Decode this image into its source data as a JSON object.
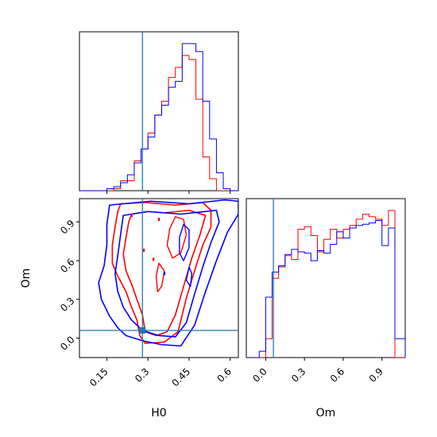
{
  "chart_data": {
    "type": "corner",
    "colors": {
      "red": "#ff0000",
      "blue": "#0000ff",
      "truth": "#1f77b4"
    },
    "truth": {
      "H0": 0.28,
      "Om": 0.06
    },
    "parameters": [
      "H0",
      "Om"
    ],
    "panels": [
      {
        "id": "h0-hist",
        "kind": "histogram",
        "xlim": [
          0.05,
          0.63
        ],
        "xticks": [
          0.15,
          0.3,
          0.45,
          0.6
        ],
        "bin_edges": [
          0.05,
          0.075,
          0.1,
          0.125,
          0.15,
          0.175,
          0.2,
          0.225,
          0.25,
          0.275,
          0.3,
          0.325,
          0.35,
          0.375,
          0.4,
          0.425,
          0.45,
          0.475,
          0.5,
          0.525,
          0.55,
          0.575,
          0.6,
          0.625
        ],
        "series": [
          {
            "color": "red",
            "counts": [
              0,
              0,
              0,
              0,
              0,
              0.01,
              0.05,
              0.05,
              0.15,
              0.21,
              0.29,
              0.38,
              0.45,
              0.57,
              0.62,
              0.68,
              0.66,
              0.46,
              0.17,
              0.06,
              0,
              0,
              0
            ]
          },
          {
            "color": "blue",
            "counts": [
              0,
              0,
              0,
              0,
              0.01,
              0.02,
              0.04,
              0.08,
              0.14,
              0.21,
              0.27,
              0.38,
              0.43,
              0.52,
              0.55,
              0.74,
              0.74,
              0.7,
              0.45,
              0.26,
              0.09,
              0.01,
              0
            ]
          }
        ]
      },
      {
        "id": "om-hist",
        "kind": "histogram",
        "xlim": [
          -0.15,
          1.08
        ],
        "xticks": [
          0.0,
          0.3,
          0.6,
          0.9
        ],
        "xlabel": "Om",
        "bin_edges": [
          -0.15,
          -0.1,
          -0.05,
          0.0,
          0.05,
          0.1,
          0.15,
          0.2,
          0.25,
          0.3,
          0.35,
          0.4,
          0.45,
          0.5,
          0.55,
          0.6,
          0.65,
          0.7,
          0.75,
          0.8,
          0.85,
          0.9,
          0.95,
          1.0,
          1.05,
          1.08
        ],
        "series": [
          {
            "color": "red",
            "counts": [
              0,
              0,
              0,
              0.15,
              0.63,
              0.72,
              0.81,
              0.78,
              1.02,
              1.04,
              0.97,
              0.84,
              0.94,
              1.02,
              0.95,
              1.02,
              1.05,
              1.1,
              1.14,
              1.12,
              1.1,
              1.05,
              1.17,
              0,
              0
            ]
          },
          {
            "color": "blue",
            "counts": [
              0,
              0,
              0.05,
              0.48,
              0.68,
              0.73,
              0.82,
              0.86,
              0.84,
              0.83,
              0.77,
              0.85,
              0.83,
              0.9,
              1.0,
              0.95,
              1.03,
              1.05,
              1.06,
              1.07,
              1.09,
              0.89,
              1.03,
              0.15,
              0.15
            ]
          }
        ]
      },
      {
        "id": "h0-om-2d",
        "kind": "contour2d",
        "xlim": [
          0.05,
          0.63
        ],
        "ylim": [
          -0.15,
          1.08
        ],
        "xticks": [
          0.15,
          0.3,
          0.45,
          0.6
        ],
        "yticks": [
          0.0,
          0.3,
          0.6,
          0.9
        ],
        "xlabel": "H0",
        "ylabel": "Om",
        "contours": [
          {
            "color": "red",
            "level": "outer",
            "points": [
              [
                0.2,
                1.04
              ],
              [
                0.29,
                1.05
              ],
              [
                0.4,
                1.03
              ],
              [
                0.5,
                1.05
              ],
              [
                0.53,
                0.99
              ],
              [
                0.53,
                0.86
              ],
              [
                0.5,
                0.72
              ],
              [
                0.47,
                0.52
              ],
              [
                0.44,
                0.31
              ],
              [
                0.41,
                0.05
              ],
              [
                0.36,
                -0.03
              ],
              [
                0.29,
                -0.04
              ],
              [
                0.27,
                0.02
              ],
              [
                0.26,
                0.14
              ],
              [
                0.24,
                0.24
              ],
              [
                0.22,
                0.36
              ],
              [
                0.19,
                0.48
              ],
              [
                0.17,
                0.58
              ],
              [
                0.17,
                0.72
              ],
              [
                0.18,
                0.86
              ],
              [
                0.19,
                0.98
              ]
            ]
          },
          {
            "color": "red",
            "level": "inner",
            "points": [
              [
                0.24,
                0.96
              ],
              [
                0.3,
                0.98
              ],
              [
                0.36,
                0.97
              ],
              [
                0.45,
                0.99
              ],
              [
                0.51,
                0.95
              ],
              [
                0.49,
                0.8
              ],
              [
                0.46,
                0.62
              ],
              [
                0.43,
                0.4
              ],
              [
                0.4,
                0.18
              ],
              [
                0.37,
                0.05
              ],
              [
                0.33,
                0.02
              ],
              [
                0.29,
                0.05
              ],
              [
                0.28,
                0.18
              ],
              [
                0.26,
                0.3
              ],
              [
                0.24,
                0.42
              ],
              [
                0.22,
                0.52
              ],
              [
                0.21,
                0.65
              ],
              [
                0.22,
                0.78
              ],
              [
                0.23,
                0.9
              ]
            ]
          },
          {
            "color": "blue",
            "level": "outer",
            "points": [
              [
                0.16,
                1.03
              ],
              [
                0.31,
                1.06
              ],
              [
                0.45,
                1.04
              ],
              [
                0.58,
                1.07
              ],
              [
                0.63,
                1.06
              ],
              [
                0.63,
                0.96
              ],
              [
                0.59,
                0.82
              ],
              [
                0.55,
                0.6
              ],
              [
                0.51,
                0.36
              ],
              [
                0.47,
                0.1
              ],
              [
                0.42,
                -0.06
              ],
              [
                0.35,
                -0.05
              ],
              [
                0.28,
                -0.02
              ],
              [
                0.22,
                0.02
              ],
              [
                0.19,
                0.08
              ],
              [
                0.16,
                0.17
              ],
              [
                0.13,
                0.3
              ],
              [
                0.12,
                0.43
              ],
              [
                0.14,
                0.56
              ],
              [
                0.15,
                0.72
              ],
              [
                0.15,
                0.88
              ]
            ]
          },
          {
            "color": "blue",
            "level": "inner",
            "points": [
              [
                0.21,
                0.95
              ],
              [
                0.3,
                0.98
              ],
              [
                0.42,
                0.96
              ],
              [
                0.55,
                0.99
              ],
              [
                0.56,
                0.9
              ],
              [
                0.53,
                0.74
              ],
              [
                0.5,
                0.55
              ],
              [
                0.47,
                0.34
              ],
              [
                0.44,
                0.12
              ],
              [
                0.4,
                0.01
              ],
              [
                0.34,
                0.02
              ],
              [
                0.28,
                0.06
              ],
              [
                0.24,
                0.14
              ],
              [
                0.21,
                0.24
              ],
              [
                0.19,
                0.36
              ],
              [
                0.18,
                0.5
              ],
              [
                0.19,
                0.64
              ],
              [
                0.2,
                0.8
              ]
            ]
          }
        ],
        "blobs": [
          {
            "color": "red",
            "points": [
              [
                0.38,
                0.85
              ],
              [
                0.4,
                0.94
              ],
              [
                0.43,
                0.92
              ],
              [
                0.44,
                0.8
              ],
              [
                0.42,
                0.66
              ],
              [
                0.39,
                0.62
              ],
              [
                0.37,
                0.72
              ]
            ]
          },
          {
            "color": "blue",
            "points": [
              [
                0.415,
                0.78
              ],
              [
                0.43,
                0.88
              ],
              [
                0.45,
                0.84
              ],
              [
                0.45,
                0.7
              ],
              [
                0.43,
                0.6
              ],
              [
                0.415,
                0.66
              ]
            ]
          },
          {
            "color": "red",
            "points": [
              [
                0.33,
                0.48
              ],
              [
                0.34,
                0.58
              ],
              [
                0.36,
                0.52
              ],
              [
                0.35,
                0.4
              ],
              [
                0.335,
                0.36
              ]
            ]
          },
          {
            "color": "blue",
            "points": [
              [
                0.44,
                0.45
              ],
              [
                0.45,
                0.55
              ],
              [
                0.46,
                0.5
              ],
              [
                0.455,
                0.4
              ]
            ]
          }
        ],
        "dots": [
          {
            "color": "red",
            "x": 0.24,
            "y": 0.95
          },
          {
            "color": "red",
            "x": 0.285,
            "y": 0.68
          },
          {
            "color": "red",
            "x": 0.32,
            "y": 0.61
          },
          {
            "color": "red",
            "x": 0.34,
            "y": 0.92
          },
          {
            "color": "blue",
            "x": 0.36,
            "y": 0.5
          }
        ]
      }
    ]
  }
}
